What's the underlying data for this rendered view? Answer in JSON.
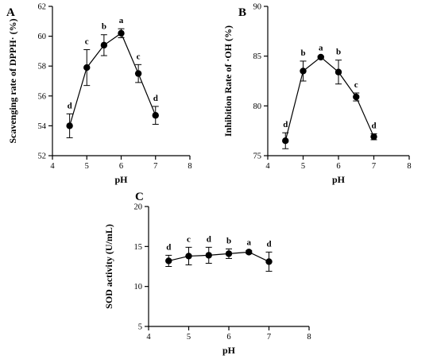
{
  "chart_data": [
    {
      "type": "line",
      "panel": "A",
      "xlabel": "pH",
      "ylabel": "Scavenging rate of DPPH· (%)",
      "xlim": [
        4,
        8
      ],
      "ylim": [
        52,
        62
      ],
      "xticks": [
        4,
        5,
        6,
        7,
        8
      ],
      "yticks": [
        52,
        54,
        56,
        58,
        60,
        62
      ],
      "grid": false,
      "points": [
        {
          "x": 4.5,
          "y": 54.0,
          "err": 0.8,
          "label": "d"
        },
        {
          "x": 5.0,
          "y": 57.9,
          "err": 1.2,
          "label": "c"
        },
        {
          "x": 5.5,
          "y": 59.4,
          "err": 0.7,
          "label": "b"
        },
        {
          "x": 6.0,
          "y": 60.2,
          "err": 0.3,
          "label": "a"
        },
        {
          "x": 6.5,
          "y": 57.5,
          "err": 0.6,
          "label": "c"
        },
        {
          "x": 7.0,
          "y": 54.7,
          "err": 0.6,
          "label": "d"
        }
      ]
    },
    {
      "type": "line",
      "panel": "B",
      "xlabel": "pH",
      "ylabel": "Inhibition Rate of ·OH (%)",
      "xlim": [
        4,
        8
      ],
      "ylim": [
        75,
        90
      ],
      "xticks": [
        4,
        5,
        6,
        7,
        8
      ],
      "yticks": [
        75,
        80,
        85,
        90
      ],
      "grid": false,
      "points": [
        {
          "x": 4.5,
          "y": 76.5,
          "err": 0.8,
          "label": "d"
        },
        {
          "x": 5.0,
          "y": 83.5,
          "err": 1.0,
          "label": "b"
        },
        {
          "x": 5.5,
          "y": 84.9,
          "err": 0.1,
          "label": "a"
        },
        {
          "x": 6.0,
          "y": 83.4,
          "err": 1.2,
          "label": "b"
        },
        {
          "x": 6.5,
          "y": 80.9,
          "err": 0.4,
          "label": "c"
        },
        {
          "x": 7.0,
          "y": 76.9,
          "err": 0.3,
          "label": "d"
        }
      ]
    },
    {
      "type": "line",
      "panel": "C",
      "xlabel": "pH",
      "ylabel": "SOD activity (U/mL)",
      "xlim": [
        4,
        8
      ],
      "ylim": [
        5,
        20
      ],
      "xticks": [
        4,
        5,
        6,
        7,
        8
      ],
      "yticks": [
        5,
        10,
        15,
        20
      ],
      "grid": false,
      "points": [
        {
          "x": 4.5,
          "y": 13.2,
          "err": 0.7,
          "label": "d"
        },
        {
          "x": 5.0,
          "y": 13.8,
          "err": 1.1,
          "label": "c"
        },
        {
          "x": 5.5,
          "y": 13.9,
          "err": 1.0,
          "label": "d"
        },
        {
          "x": 6.0,
          "y": 14.1,
          "err": 0.6,
          "label": "b"
        },
        {
          "x": 6.5,
          "y": 14.3,
          "err": 0.2,
          "label": "a"
        },
        {
          "x": 7.0,
          "y": 13.1,
          "err": 1.2,
          "label": "d"
        }
      ]
    }
  ]
}
